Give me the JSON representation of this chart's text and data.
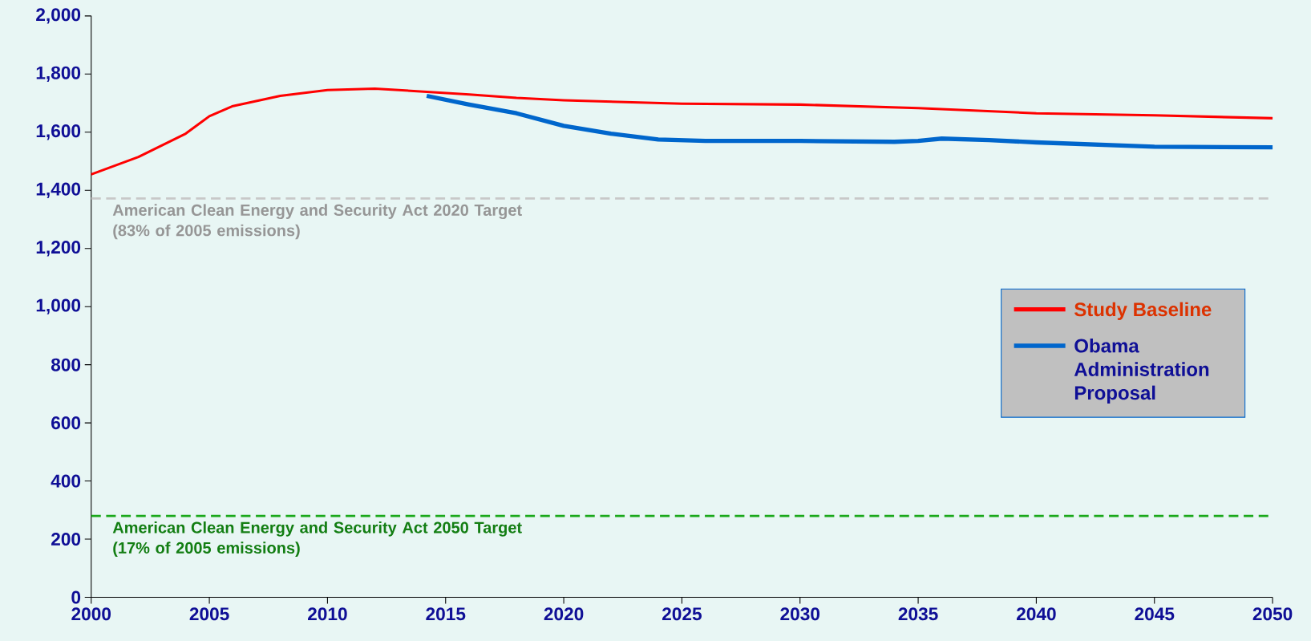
{
  "chart_data": {
    "type": "line",
    "xlim": [
      2000,
      2050
    ],
    "ylim": [
      0,
      2000
    ],
    "xticks": [
      2000,
      2005,
      2010,
      2015,
      2020,
      2025,
      2030,
      2035,
      2040,
      2045,
      2050
    ],
    "yticks": [
      0,
      200,
      400,
      600,
      800,
      {
        "value": 1000,
        "label": "1,000"
      },
      {
        "value": 1200,
        "label": "1,200"
      },
      {
        "value": 1400,
        "label": "1,400"
      },
      {
        "value": 1600,
        "label": "1,600"
      },
      {
        "value": 1800,
        "label": "1,800"
      },
      {
        "value": 2000,
        "label": "2,000"
      }
    ],
    "grid": false,
    "legend": "right",
    "marker": "none",
    "line_style": "solid",
    "series": [
      {
        "name": "Study Baseline",
        "color": "#ff0000",
        "x": [
          2000,
          2002,
          2004,
          2005,
          2006,
          2008,
          2010,
          2012,
          2014,
          2016,
          2018,
          2020,
          2025,
          2030,
          2035,
          2040,
          2045,
          2050
        ],
        "values": [
          1455,
          1515,
          1595,
          1655,
          1690,
          1725,
          1745,
          1750,
          1740,
          1730,
          1718,
          1710,
          1698,
          1695,
          1683,
          1665,
          1658,
          1648
        ]
      },
      {
        "name": "Obama Administration Proposal",
        "color": "#0066cc",
        "x": [
          2014.2,
          2016,
          2018,
          2020,
          2022,
          2024,
          2026,
          2030,
          2034,
          2035,
          2036,
          2038,
          2040,
          2045,
          2050
        ],
        "values": [
          1725,
          1695,
          1665,
          1622,
          1595,
          1575,
          1570,
          1570,
          1567,
          1570,
          1578,
          1573,
          1565,
          1550,
          1548
        ]
      }
    ],
    "ref_lines": [
      {
        "axis": "y",
        "value": 1372,
        "label": "American Clean Energy and Security Act 2020 Target (83% of 2005 emissions)",
        "color": "#c8c8c8",
        "line_style": "dashed"
      },
      {
        "axis": "y",
        "value": 280,
        "label": "American Clean Energy and Security Act 2050 Target (17% of 2005 emissions)",
        "color": "#1aa81a",
        "line_style": "dashed"
      }
    ]
  }
}
